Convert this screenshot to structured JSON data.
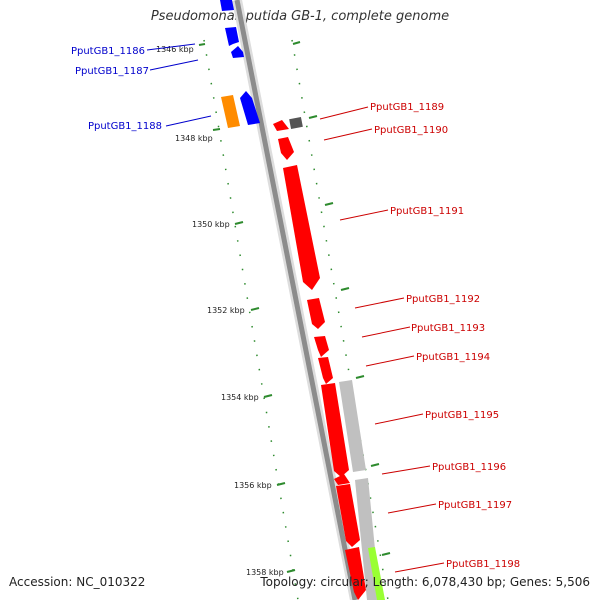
{
  "title": "Pseudomonas putida GB-1, complete genome",
  "accession": "Accession: NC_010322",
  "summary": "Topology: circular; Length: 6,078,430 bp; Genes: 5,506",
  "colors": {
    "backbone": "#8c8c8c",
    "reverse_gene": "#0000ff",
    "forward_gene": "#ff0000",
    "orange_gene": "#ff8c00",
    "grey_feature": "#c0c0c0",
    "dark_feature": "#555555",
    "green_feature": "#99ff33",
    "tick": "#2e8b2e"
  },
  "scale_labels": [
    "1346 kbp",
    "1348 kbp",
    "1350 kbp",
    "1352 kbp",
    "1354 kbp",
    "1356 kbp",
    "1358 kbp"
  ],
  "left_genes": [
    "PputGB1_1186",
    "PputGB1_1187",
    "PputGB1_1188"
  ],
  "right_genes": [
    "PputGB1_1189",
    "PputGB1_1190",
    "PputGB1_1191",
    "PputGB1_1192",
    "PputGB1_1193",
    "PputGB1_1194",
    "PputGB1_1195",
    "PputGB1_1196",
    "PputGB1_1197",
    "PputGB1_1198"
  ]
}
